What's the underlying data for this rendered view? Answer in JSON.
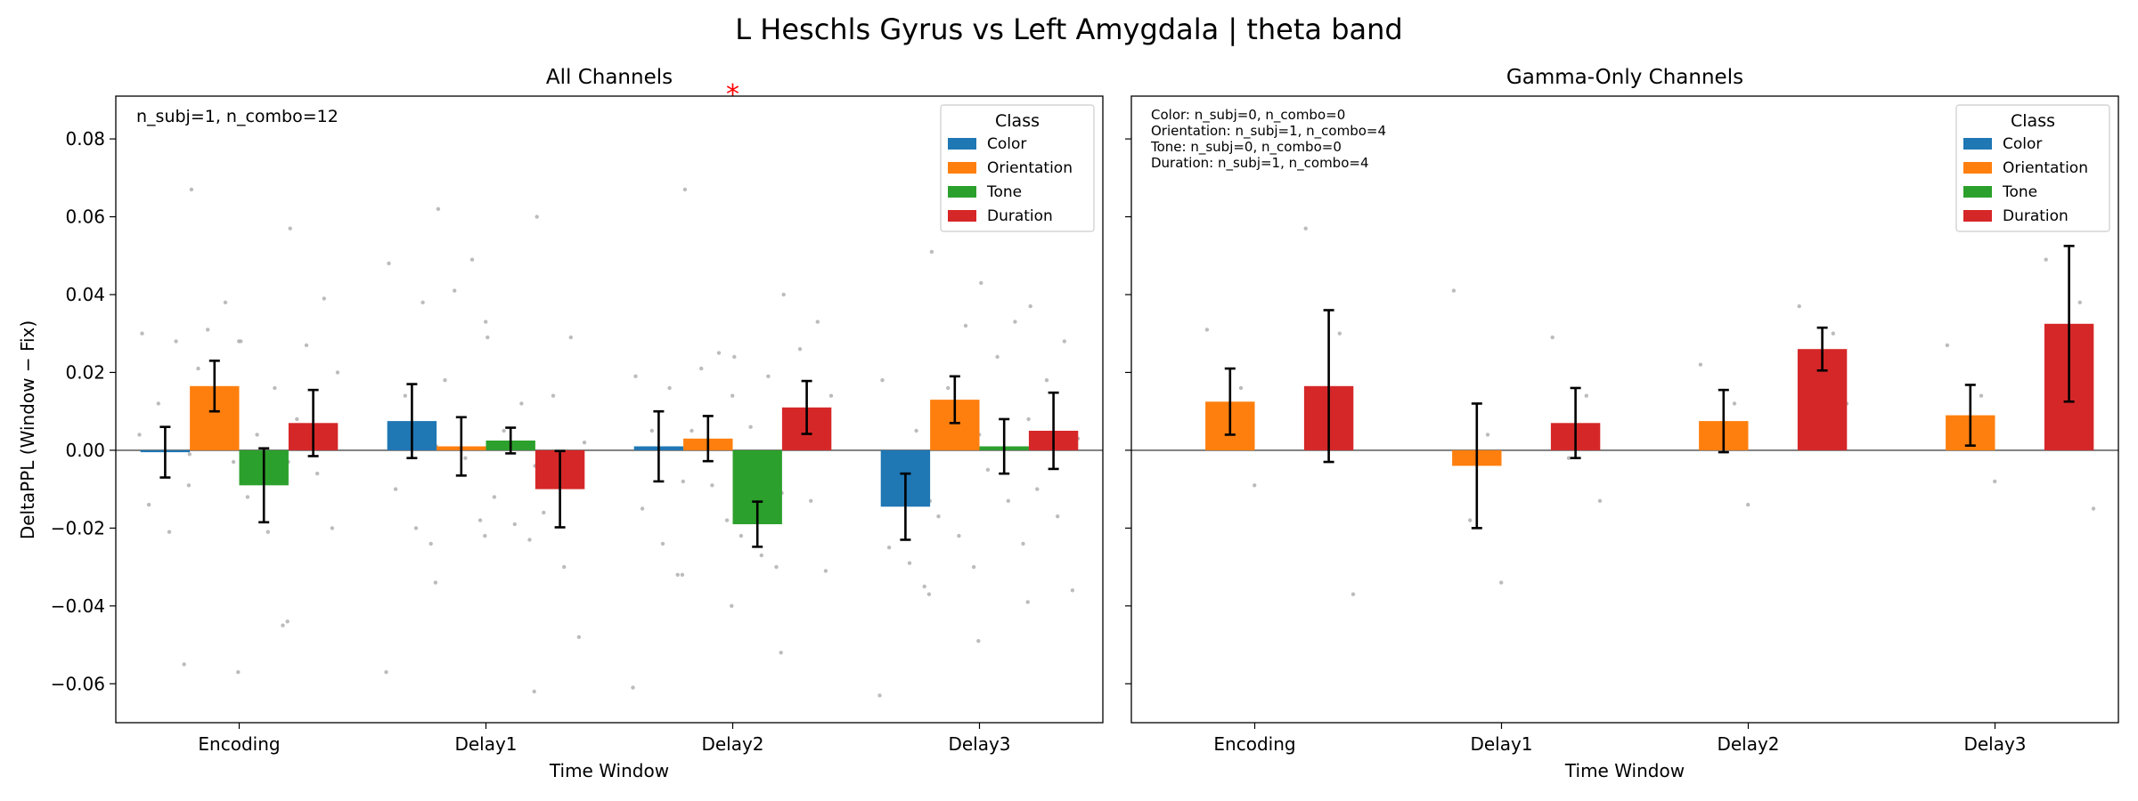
{
  "figure": {
    "suptitle": "L Heschls Gyrus vs Left Amygdala  |  theta band",
    "ylabel": "DeltaPPL (Window − Fix)"
  },
  "colors": {
    "Color": "#1f77b4",
    "Orientation": "#ff7f0e",
    "Tone": "#2ca02c",
    "Duration": "#d62728",
    "scatter": "#b0b0b0",
    "significance": "#ff0000"
  },
  "chart_data": [
    {
      "type": "bar",
      "title": "All Channels",
      "xlabel": "Time Window",
      "ylabel": "DeltaPPL (Window − Fix)",
      "categories": [
        "Encoding",
        "Delay1",
        "Delay2",
        "Delay3"
      ],
      "ylim": [
        -0.07,
        0.091
      ],
      "yticks": [
        -0.06,
        -0.04,
        -0.02,
        0.0,
        0.02,
        0.04,
        0.06,
        0.08
      ],
      "ytick_labels": [
        "−0.06",
        "−0.04",
        "−0.02",
        "0.00",
        "0.02",
        "0.04",
        "0.06",
        "0.08"
      ],
      "legend": {
        "title": "Class",
        "position": "upper right"
      },
      "annotation": "n_subj=1, n_combo=12",
      "significance": {
        "label": "*",
        "category": "Delay2"
      },
      "series": [
        {
          "name": "Color",
          "values": [
            -0.0005,
            0.0075,
            0.001,
            -0.0145
          ],
          "errors": [
            0.0065,
            0.0095,
            0.009,
            0.0085
          ]
        },
        {
          "name": "Orientation",
          "values": [
            0.0165,
            0.001,
            0.003,
            0.013
          ],
          "errors": [
            0.0065,
            0.0075,
            0.0058,
            0.006
          ]
        },
        {
          "name": "Tone",
          "values": [
            -0.009,
            0.0025,
            -0.019,
            0.001
          ],
          "errors": [
            0.0095,
            0.0033,
            0.0058,
            0.007
          ]
        },
        {
          "name": "Duration",
          "values": [
            0.007,
            -0.01,
            0.011,
            0.005
          ],
          "errors": [
            0.0085,
            0.0098,
            0.0068,
            0.0098
          ]
        }
      ],
      "points": [
        [
          [
            0.03,
            0.028,
            0.012,
            -0.001,
            -0.014,
            -0.021,
            -0.055,
            0.004
          ],
          [
            0.067,
            0.038,
            0.031,
            0.028,
            0.021,
            0.013,
            -0.003,
            -0.009
          ],
          [
            0.028,
            0.016,
            0.004,
            -0.003,
            -0.012,
            -0.021,
            -0.045,
            -0.057
          ],
          [
            0.057,
            0.039,
            0.027,
            0.02,
            0.008,
            -0.006,
            -0.02,
            -0.044
          ]
        ],
        [
          [
            0.048,
            0.038,
            0.014,
            0.001,
            -0.01,
            -0.02,
            -0.024,
            -0.057
          ],
          [
            0.062,
            0.049,
            0.041,
            0.033,
            0.018,
            -0.002,
            -0.018,
            -0.034
          ],
          [
            0.029,
            0.012,
            0.005,
            -0.004,
            -0.012,
            -0.019,
            -0.023,
            -0.022
          ],
          [
            0.06,
            0.029,
            0.014,
            0.002,
            -0.016,
            -0.03,
            -0.048,
            -0.062
          ]
        ],
        [
          [
            0.019,
            0.016,
            0.005,
            -0.008,
            -0.015,
            -0.024,
            -0.032,
            -0.061
          ],
          [
            0.067,
            0.025,
            0.021,
            0.014,
            0.005,
            -0.009,
            -0.018,
            -0.032
          ],
          [
            0.024,
            0.019,
            0.006,
            -0.011,
            -0.022,
            -0.027,
            -0.03,
            -0.04
          ],
          [
            0.04,
            0.033,
            0.026,
            0.014,
            0.003,
            -0.013,
            -0.031,
            -0.052
          ]
        ],
        [
          [
            0.018,
            0.005,
            -0.002,
            -0.013,
            -0.025,
            -0.029,
            -0.035,
            -0.063
          ],
          [
            0.051,
            0.032,
            0.016,
            0.004,
            -0.017,
            -0.022,
            -0.03,
            -0.037
          ],
          [
            0.043,
            0.033,
            0.024,
            0.008,
            -0.005,
            -0.013,
            -0.024,
            -0.049
          ],
          [
            0.037,
            0.028,
            0.018,
            0.003,
            -0.01,
            -0.017,
            -0.036,
            -0.039
          ]
        ]
      ]
    },
    {
      "type": "bar",
      "title": "Gamma-Only Channels",
      "xlabel": "Time Window",
      "categories": [
        "Encoding",
        "Delay1",
        "Delay2",
        "Delay3"
      ],
      "ylim": [
        -0.07,
        0.091
      ],
      "legend": {
        "title": "Class",
        "position": "upper right"
      },
      "annotation_lines": [
        "Color: n_subj=0, n_combo=0",
        "Orientation: n_subj=1, n_combo=4",
        "Tone: n_subj=0, n_combo=0",
        "Duration: n_subj=1, n_combo=4"
      ],
      "series": [
        {
          "name": "Color",
          "values": [
            null,
            null,
            null,
            null
          ],
          "errors": [
            null,
            null,
            null,
            null
          ]
        },
        {
          "name": "Orientation",
          "values": [
            0.0125,
            -0.004,
            0.0075,
            0.009
          ],
          "errors": [
            0.0085,
            0.016,
            0.008,
            0.0078
          ]
        },
        {
          "name": "Tone",
          "values": [
            null,
            null,
            null,
            null
          ],
          "errors": [
            null,
            null,
            null,
            null
          ]
        },
        {
          "name": "Duration",
          "values": [
            0.0165,
            0.007,
            0.026,
            0.0325
          ],
          "errors": [
            0.0195,
            0.009,
            0.0055,
            0.02
          ]
        }
      ],
      "points": [
        [
          [],
          [
            0.031,
            0.016,
            0.008,
            -0.009
          ],
          [],
          [
            0.057,
            0.03,
            0.008,
            -0.037
          ]
        ],
        [
          [],
          [
            0.041,
            0.004,
            -0.018,
            -0.034
          ],
          [],
          [
            0.029,
            0.014,
            -0.002,
            -0.013
          ]
        ],
        [
          [],
          [
            0.022,
            0.012,
            0.003,
            -0.014
          ],
          [],
          [
            0.037,
            0.03,
            0.018,
            0.012
          ]
        ],
        [
          [],
          [
            0.027,
            0.014,
            0.006,
            -0.008
          ],
          [],
          [
            0.049,
            0.038,
            0.024,
            -0.015
          ]
        ]
      ]
    }
  ]
}
